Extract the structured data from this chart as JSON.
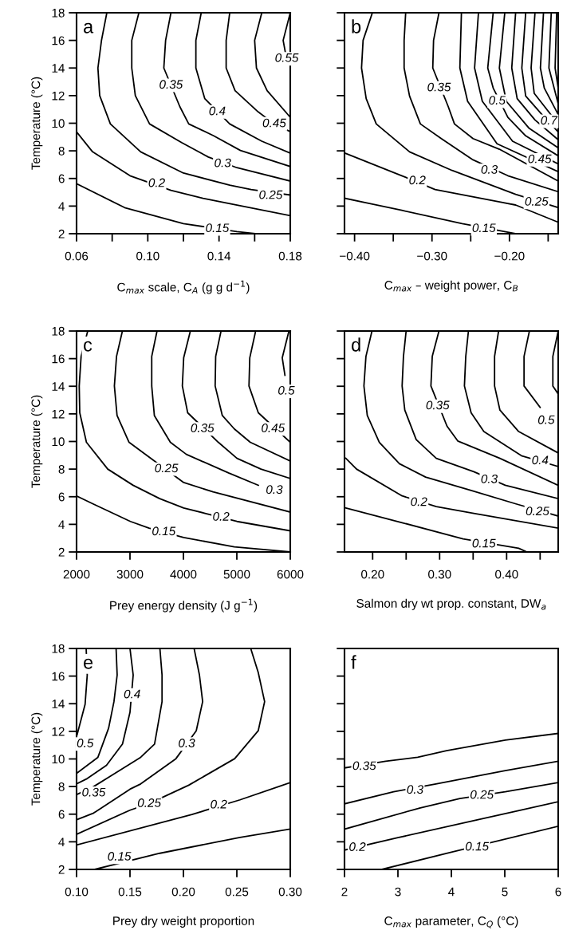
{
  "chart_data": [
    {
      "type": "line",
      "title": "a",
      "xlabel": "C$_{max}$ scale, C$_{A}$ (g g d$^{−1}$)",
      "ylabel": "Temperature (°C)",
      "xlim": [
        0.06,
        0.18
      ],
      "ylim": [
        2,
        18
      ],
      "xticks": [
        {
          "value": 0.06,
          "label": "0.06"
        },
        {
          "value": 0.08,
          "label": null
        },
        {
          "value": 0.1,
          "label": "0.10"
        },
        {
          "value": 0.12,
          "label": null
        },
        {
          "value": 0.14,
          "label": "0.14"
        },
        {
          "value": 0.16,
          "label": null
        },
        {
          "value": 0.18,
          "label": "0.18"
        }
      ],
      "yticks": [
        2,
        4,
        6,
        8,
        10,
        12,
        14,
        16,
        18
      ],
      "grid": false,
      "legend": false,
      "series": [
        {
          "color": "#000000",
          "x": [
            0.06,
            0.087,
            0.12,
            0.15,
            0.161
          ],
          "values": [
            5.62,
            3.89,
            2.73,
            2.15,
            2.0
          ]
        },
        {
          "color": "#000000",
          "x": [
            0.06,
            0.069,
            0.09,
            0.113,
            0.131,
            0.18
          ],
          "values": [
            9.37,
            7.93,
            6.2,
            5.14,
            4.56,
            3.31
          ]
        },
        {
          "color": "#000000",
          "x": [
            0.077,
            0.074,
            0.072,
            0.073,
            0.079,
            0.096,
            0.12,
            0.146,
            0.158,
            0.18
          ],
          "values": [
            18,
            16.0,
            14.0,
            12.0,
            9.95,
            7.93,
            6.39,
            5.52,
            5.2,
            4.8
          ]
        },
        {
          "color": "#000000",
          "x": [
            0.095,
            0.091,
            0.091,
            0.093,
            0.101,
            0.119,
            0.134,
            0.15,
            0.18
          ],
          "values": [
            18,
            16.0,
            14.0,
            12.0,
            9.95,
            8.6,
            7.55,
            6.78,
            5.81
          ]
        },
        {
          "color": "#000000",
          "x": [
            0.113,
            0.11,
            0.109,
            0.118,
            0.123,
            0.137,
            0.152,
            0.18
          ],
          "values": [
            18,
            16.0,
            14.0,
            11.2,
            9.95,
            9.09,
            8.03,
            6.87
          ]
        },
        {
          "color": "#000000",
          "x": [
            0.13,
            0.127,
            0.127,
            0.132,
            0.146,
            0.164,
            0.18
          ],
          "values": [
            18,
            16.0,
            14.0,
            11.78,
            9.95,
            8.7,
            7.83
          ]
        },
        {
          "color": "#000000",
          "x": [
            0.146,
            0.144,
            0.144,
            0.149,
            0.162,
            0.171,
            0.18
          ],
          "values": [
            18,
            16.0,
            14.0,
            12.36,
            10.82,
            9.95,
            9.4
          ]
        },
        {
          "color": "#000000",
          "x": [
            0.164,
            0.16,
            0.161,
            0.167,
            0.18
          ],
          "values": [
            18,
            16.0,
            14.0,
            12.36,
            10.43
          ]
        },
        {
          "color": "#000000",
          "x": [
            0.18,
            0.176,
            0.178
          ],
          "values": [
            18,
            16.0,
            14.6
          ]
        }
      ],
      "annotations": [
        {
          "text": "0.15",
          "x": 0.139,
          "y": 2.35
        },
        {
          "text": "0.2",
          "x": 0.105,
          "y": 5.62
        },
        {
          "text": "0.25",
          "x": 0.169,
          "y": 4.75
        },
        {
          "text": "0.3",
          "x": 0.142,
          "y": 7.06
        },
        {
          "text": "0.35",
          "x": 0.113,
          "y": 12.74
        },
        {
          "text": "0.4",
          "x": 0.139,
          "y": 10.82
        },
        {
          "text": "0.45",
          "x": 0.171,
          "y": 9.95
        },
        {
          "text": "0.55",
          "x": 0.178,
          "y": 14.67
        }
      ]
    },
    {
      "type": "line",
      "title": "b",
      "xlabel": "C$_{max}$ – weight power, C$_{B}$",
      "xlim": [
        -0.413,
        -0.137
      ],
      "ylim": [
        2,
        18
      ],
      "tick_labels": "x",
      "xticks": [
        {
          "value": -0.4,
          "label": "−0.40"
        },
        {
          "value": -0.35,
          "label": null
        },
        {
          "value": -0.3,
          "label": "−0.30"
        },
        {
          "value": -0.25,
          "label": null
        },
        {
          "value": -0.2,
          "label": "−0.20"
        },
        {
          "value": -0.15,
          "label": null
        }
      ],
      "yticks": [
        2,
        4,
        6,
        8,
        10,
        12,
        14,
        16,
        18
      ],
      "grid": false,
      "legend": false,
      "series": [
        {
          "color": "#000000",
          "x": [
            -0.412,
            -0.339,
            -0.261,
            -0.206,
            -0.192
          ],
          "values": [
            4.56,
            3.69,
            2.73,
            2.15,
            2.0
          ]
        },
        {
          "color": "#000000",
          "x": [
            -0.412,
            -0.339,
            -0.296,
            -0.192,
            -0.137
          ],
          "values": [
            7.83,
            6.2,
            5.2,
            4.08,
            2.83
          ]
        },
        {
          "color": "#000000",
          "x": [
            -0.377,
            -0.389,
            -0.391,
            -0.385,
            -0.372,
            -0.329,
            -0.274,
            -0.192,
            -0.137
          ],
          "values": [
            18,
            16.0,
            14.0,
            11.78,
            9.95,
            7.93,
            6.58,
            4.85,
            3.89
          ]
        },
        {
          "color": "#000000",
          "x": [
            -0.334,
            -0.336,
            -0.336,
            -0.329,
            -0.315,
            -0.288,
            -0.247,
            -0.202,
            -0.137
          ],
          "values": [
            18,
            16.0,
            14.0,
            11.97,
            9.95,
            8.89,
            7.35,
            6.2,
            5.04
          ]
        },
        {
          "color": "#000000",
          "x": [
            -0.291,
            -0.298,
            -0.299,
            -0.279,
            -0.271,
            -0.247,
            -0.213,
            -0.137
          ],
          "values": [
            18,
            16.0,
            14.0,
            11.2,
            9.95,
            8.89,
            8.12,
            5.81
          ]
        },
        {
          "color": "#000000",
          "x": [
            -0.262,
            -0.264,
            -0.254,
            -0.216,
            -0.137
          ],
          "values": [
            18,
            14.0,
            11.59,
            8.51,
            6.49
          ]
        },
        {
          "color": "#000000",
          "x": [
            -0.24,
            -0.245,
            -0.235,
            -0.196,
            -0.137
          ],
          "values": [
            18,
            14.0,
            11.59,
            8.7,
            7.06
          ]
        },
        {
          "color": "#000000",
          "x": [
            -0.221,
            -0.228,
            -0.221,
            -0.202,
            -0.179,
            -0.137
          ],
          "values": [
            18,
            14.0,
            12.55,
            10.43,
            9.09,
            7.64
          ]
        },
        {
          "color": "#000000",
          "x": [
            -0.206,
            -0.213,
            -0.204,
            -0.175,
            -0.137
          ],
          "values": [
            18,
            14.0,
            11.59,
            9.66,
            8.22
          ]
        },
        {
          "color": "#000000",
          "x": [
            -0.192,
            -0.197,
            -0.19,
            -0.167,
            -0.137
          ],
          "values": [
            18,
            14.0,
            11.78,
            10.24,
            8.8
          ]
        },
        {
          "color": "#000000",
          "x": [
            -0.179,
            -0.184,
            -0.179,
            -0.158,
            -0.137
          ],
          "values": [
            18,
            14.0,
            11.97,
            10.63,
            9.37
          ]
        },
        {
          "color": "#000000",
          "x": [
            -0.167,
            -0.172,
            -0.168,
            -0.137
          ],
          "values": [
            18,
            14.0,
            12.17,
            9.95
          ]
        },
        {
          "color": "#000000",
          "x": [
            -0.156,
            -0.16,
            -0.155,
            -0.137
          ],
          "values": [
            18,
            14.0,
            12.55,
            10.63
          ]
        },
        {
          "color": "#000000",
          "x": [
            -0.146,
            -0.149,
            -0.137
          ],
          "values": [
            18,
            14.0,
            11.4
          ]
        },
        {
          "color": "#000000",
          "x": [
            -0.139,
            -0.141,
            -0.137
          ],
          "values": [
            18,
            14.0,
            12.55
          ]
        }
      ],
      "annotations": [
        {
          "text": "0.35",
          "x": -0.291,
          "y": 12.55
        },
        {
          "text": "0.5",
          "x": -0.216,
          "y": 11.59
        },
        {
          "text": "0.7",
          "x": -0.149,
          "y": 10.14
        },
        {
          "text": "0.45",
          "x": -0.161,
          "y": 7.35
        },
        {
          "text": "0.3",
          "x": -0.226,
          "y": 6.58
        },
        {
          "text": "0.25",
          "x": -0.165,
          "y": 4.27
        },
        {
          "text": "0.2",
          "x": -0.319,
          "y": 5.81
        },
        {
          "text": "0.15",
          "x": -0.233,
          "y": 2.35
        }
      ]
    },
    {
      "type": "line",
      "title": "c",
      "xlabel": "Prey energy density (J g$^{−1}$)",
      "ylabel": "Temperature (°C)",
      "xlim": [
        2000,
        6000
      ],
      "ylim": [
        2,
        18
      ],
      "xticks": [
        2000,
        3000,
        4000,
        5000,
        6000
      ],
      "yticks": [
        2,
        4,
        6,
        8,
        10,
        12,
        14,
        16,
        18
      ],
      "grid": false,
      "legend": false,
      "series": [
        {
          "color": "#000000",
          "x": [
            2000,
            2309,
            3008,
            3357,
            4005,
            4953,
            6000
          ],
          "values": [
            6.06,
            5.48,
            4.21,
            3.73,
            3.05,
            2.37,
            2.0
          ]
        },
        {
          "color": "#000000",
          "x": [
            2209,
            2085,
            2050,
            2060,
            2185,
            2584,
            3058,
            3556,
            4005,
            4404,
            5002,
            6000
          ],
          "values": [
            18,
            16.16,
            14.02,
            12.08,
            9.94,
            8.0,
            6.83,
            5.86,
            5.18,
            4.8,
            4.21,
            3.53
          ]
        },
        {
          "color": "#000000",
          "x": [
            2858,
            2748,
            2708,
            2758,
            2983,
            3357,
            4005,
            4554,
            6000
          ],
          "values": [
            18,
            16.16,
            14.02,
            11.88,
            9.94,
            8.87,
            7.03,
            6.35,
            4.89
          ]
        },
        {
          "color": "#000000",
          "x": [
            3506,
            3407,
            3407,
            3456,
            3756,
            4055,
            4853,
            5402
          ],
          "values": [
            18,
            16.16,
            14.02,
            11.88,
            9.94,
            9.07,
            7.71,
            6.83
          ]
        },
        {
          "color": "#000000",
          "x": [
            4130,
            4005,
            3980,
            4080,
            4654,
            5003,
            5452,
            6000
          ],
          "values": [
            18,
            16.06,
            14.02,
            12.08,
            9.94,
            8.78,
            8.0,
            7.32
          ]
        },
        {
          "color": "#000000",
          "x": [
            4704,
            4604,
            4594,
            4728,
            4953,
            5252,
            6000
          ],
          "values": [
            18,
            16.16,
            14.02,
            11.88,
            10.91,
            9.94,
            8.58
          ]
        },
        {
          "color": "#000000",
          "x": [
            5352,
            5242,
            5227,
            5402,
            6000
          ],
          "values": [
            18,
            16.06,
            14.02,
            12.08,
            9.94
          ]
        },
        {
          "color": "#000000",
          "x": [
            5975,
            5850,
            5900
          ],
          "values": [
            18,
            16.06,
            14.8
          ]
        }
      ],
      "annotations": [
        {
          "text": "0.15",
          "x": 3631,
          "y": 3.44
        },
        {
          "text": "0.2",
          "x": 4704,
          "y": 4.5
        },
        {
          "text": "0.25",
          "x": 3681,
          "y": 8.0
        },
        {
          "text": "0.3",
          "x": 5701,
          "y": 6.45
        },
        {
          "text": "0.35",
          "x": 4354,
          "y": 10.91
        },
        {
          "text": "0.45",
          "x": 5676,
          "y": 10.91
        },
        {
          "text": "0.5",
          "x": 5925,
          "y": 13.63
        }
      ]
    },
    {
      "type": "line",
      "title": "d",
      "xlabel": "Salmon dry wt prop. constant, DW$_{a}$",
      "xlim": [
        0.158,
        0.477
      ],
      "ylim": [
        2,
        18
      ],
      "tick_labels": "x",
      "xticks": [
        {
          "value": 0.2,
          "label": "0.20"
        },
        {
          "value": 0.25,
          "label": null
        },
        {
          "value": 0.3,
          "label": "0.30"
        },
        {
          "value": 0.35,
          "label": null
        },
        {
          "value": 0.4,
          "label": "0.40"
        },
        {
          "value": 0.45,
          "label": null
        }
      ],
      "yticks": [
        2,
        4,
        6,
        8,
        10,
        12,
        14,
        16,
        18
      ],
      "grid": false,
      "legend": false,
      "series": [
        {
          "color": "#000000",
          "x": [
            0.16,
            0.244,
            0.335,
            0.418,
            0.43
          ],
          "values": [
            5.18,
            4.12,
            2.95,
            2.27,
            2.0
          ]
        },
        {
          "color": "#000000",
          "x": [
            0.16,
            0.176,
            0.244,
            0.295,
            0.351,
            0.477
          ],
          "values": [
            8.78,
            8.0,
            6.06,
            5.28,
            4.8,
            3.73
          ]
        },
        {
          "color": "#000000",
          "x": [
            0.199,
            0.19,
            0.187,
            0.192,
            0.21,
            0.24,
            0.279,
            0.347,
            0.414,
            0.477
          ],
          "values": [
            18,
            16.16,
            14.02,
            11.88,
            9.94,
            8.39,
            7.42,
            6.45,
            5.48,
            4.6
          ]
        },
        {
          "color": "#000000",
          "x": [
            0.25,
            0.246,
            0.244,
            0.248,
            0.265,
            0.295,
            0.351,
            0.398,
            0.477
          ],
          "values": [
            18,
            16.16,
            14.02,
            12.27,
            10.14,
            8.78,
            7.81,
            6.83,
            5.86
          ]
        },
        {
          "color": "#000000",
          "x": [
            0.299,
            0.289,
            0.287,
            0.311,
            0.327,
            0.39,
            0.477
          ],
          "values": [
            18,
            16.16,
            14.02,
            11.11,
            10.04,
            8.78,
            6.83
          ]
        },
        {
          "color": "#000000",
          "x": [
            0.343,
            0.339,
            0.337,
            0.347,
            0.366,
            0.422,
            0.477
          ],
          "values": [
            18,
            16.16,
            14.02,
            12.08,
            10.72,
            8.97,
            8.19
          ]
        },
        {
          "color": "#000000",
          "x": [
            0.388,
            0.382,
            0.382,
            0.39,
            0.418,
            0.477
          ],
          "values": [
            18,
            16.16,
            14.02,
            12.27,
            10.72,
            9.17
          ]
        },
        {
          "color": "#000000",
          "x": [
            0.434,
            0.426,
            0.426,
            0.45
          ],
          "values": [
            18,
            16.16,
            14.02,
            12.47
          ]
        },
        {
          "color": "#000000",
          "x": [
            0.477,
            0.469,
            0.469,
            0.477
          ],
          "values": [
            18,
            16.16,
            14.02,
            13.44
          ]
        }
      ],
      "annotations": [
        {
          "text": "0.35",
          "x": 0.297,
          "y": 12.56
        },
        {
          "text": "0.5",
          "x": 0.459,
          "y": 11.5
        },
        {
          "text": "0.4",
          "x": 0.45,
          "y": 8.58
        },
        {
          "text": "0.3",
          "x": 0.374,
          "y": 7.22
        },
        {
          "text": "0.25",
          "x": 0.446,
          "y": 4.89
        },
        {
          "text": "0.2",
          "x": 0.269,
          "y": 5.57
        },
        {
          "text": "0.15",
          "x": 0.366,
          "y": 2.56
        }
      ]
    },
    {
      "type": "line",
      "title": "e",
      "xlabel": "Prey dry weight proportion",
      "ylabel": "Temperature (°C)",
      "xlim": [
        0.1,
        0.3
      ],
      "ylim": [
        2,
        18
      ],
      "xticks": [
        {
          "value": 0.1,
          "label": "0.10"
        },
        {
          "value": 0.15,
          "label": "0.15"
        },
        {
          "value": 0.2,
          "label": "0.20"
        },
        {
          "value": 0.25,
          "label": "0.25"
        },
        {
          "value": 0.3,
          "label": "0.30"
        }
      ],
      "yticks": [
        2,
        4,
        6,
        8,
        10,
        12,
        14,
        16,
        18
      ],
      "grid": false,
      "legend": false,
      "series": [
        {
          "color": "#000000",
          "x": [
            0.109,
            0.11,
            0.108,
            0.1005
          ],
          "values": [
            18,
            16.08,
            13.96,
            11.75
          ]
        },
        {
          "color": "#000000",
          "x": [
            0.137,
            0.138,
            0.135,
            0.13,
            0.12,
            0.1
          ],
          "values": [
            18,
            16.08,
            14.15,
            12.23,
            10.12,
            8.96
          ]
        },
        {
          "color": "#000000",
          "x": [
            0.15,
            0.153,
            0.15,
            0.143,
            0.128,
            0.11,
            0.1
          ],
          "values": [
            18,
            16.08,
            13.38,
            11.08,
            9.54,
            8.58,
            8.19
          ]
        },
        {
          "color": "#000000",
          "x": [
            0.178,
            0.18,
            0.18,
            0.173,
            0.16,
            0.13,
            0.116,
            0.1
          ],
          "values": [
            18,
            16.08,
            14.15,
            11.08,
            10.12,
            8.67,
            8.0,
            7.42
          ]
        },
        {
          "color": "#000000",
          "x": [
            0.21,
            0.215,
            0.218,
            0.212,
            0.193,
            0.16,
            0.15,
            0.116,
            0.1
          ],
          "values": [
            18,
            16.08,
            14.15,
            12.04,
            10.02,
            8.19,
            7.81,
            6.08,
            5.6
          ]
        },
        {
          "color": "#000000",
          "x": [
            0.263,
            0.27,
            0.276,
            0.27,
            0.248,
            0.205,
            0.168,
            0.15,
            0.1
          ],
          "values": [
            18,
            16.27,
            14.15,
            12.04,
            10.02,
            8.1,
            6.77,
            6.29,
            4.54
          ]
        },
        {
          "color": "#000000",
          "x": [
            0.1,
            0.208,
            0.253,
            0.293,
            0.3
          ],
          "values": [
            3.77,
            5.98,
            7.04,
            8.1,
            8.29
          ]
        },
        {
          "color": "#000000",
          "x": [
            0.117,
            0.178,
            0.253,
            0.3
          ],
          "values": [
            2.0,
            3.17,
            4.32,
            4.92
          ]
        }
      ],
      "annotations": [
        {
          "text": "0.5",
          "x": 0.108,
          "y": 11.08
        },
        {
          "text": "0.4",
          "x": 0.152,
          "y": 14.63
        },
        {
          "text": "0.35",
          "x": 0.116,
          "y": 7.52
        },
        {
          "text": "0.3",
          "x": 0.203,
          "y": 11.08
        },
        {
          "text": "0.25",
          "x": 0.168,
          "y": 6.75
        },
        {
          "text": "0.2",
          "x": 0.233,
          "y": 6.65
        },
        {
          "text": "0.15",
          "x": 0.14,
          "y": 2.88
        }
      ]
    },
    {
      "type": "line",
      "title": "f",
      "xlabel": "C$_{max}$ parameter, C$_{Q}$ (°C)",
      "xlim": [
        2,
        6
      ],
      "ylim": [
        2,
        18
      ],
      "tick_labels": "x",
      "xticks": [
        2,
        3,
        4,
        5,
        6
      ],
      "yticks": [
        2,
        4,
        6,
        8,
        10,
        12,
        14,
        16,
        18
      ],
      "grid": false,
      "legend": false,
      "series": [
        {
          "color": "#000000",
          "x": [
            2.0,
            2.77,
            3.37,
            3.91,
            5.01,
            6.0
          ],
          "values": [
            9.35,
            9.83,
            10.12,
            10.6,
            11.37,
            11.85
          ]
        },
        {
          "color": "#000000",
          "x": [
            2.0,
            2.92,
            3.71,
            5.01,
            6.0
          ],
          "values": [
            6.75,
            7.62,
            8.19,
            9.15,
            9.83
          ]
        },
        {
          "color": "#000000",
          "x": [
            2.0,
            3.42,
            4.16,
            5.01,
            6.0
          ],
          "values": [
            4.92,
            6.46,
            7.13,
            7.62,
            8.29
          ]
        },
        {
          "color": "#000000",
          "x": [
            2.0,
            3.0,
            4.5,
            6.0
          ],
          "values": [
            3.4,
            4.3,
            5.6,
            6.9
          ]
        },
        {
          "color": "#000000",
          "x": [
            2.7,
            4.0,
            6.0
          ],
          "values": [
            2.0,
            3.25,
            5.13
          ]
        }
      ],
      "annotations": [
        {
          "text": "0.35",
          "x": 2.37,
          "y": 9.44
        },
        {
          "text": "0.3",
          "x": 3.32,
          "y": 7.72
        },
        {
          "text": "0.25",
          "x": 4.57,
          "y": 7.35
        },
        {
          "text": "0.2",
          "x": 2.24,
          "y": 3.57
        },
        {
          "text": "0.15",
          "x": 4.48,
          "y": 3.6
        }
      ]
    }
  ]
}
